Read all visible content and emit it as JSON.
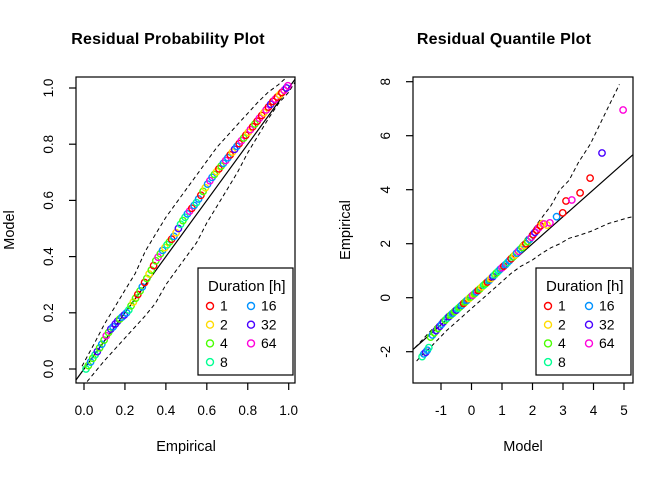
{
  "figure": {
    "background": "#ffffff",
    "foreground": "#000000"
  },
  "legend": {
    "title": "Duration [h]"
  },
  "durations": [
    {
      "label": "1",
      "color": "#FF0000"
    },
    {
      "label": "2",
      "color": "#FFDB00"
    },
    {
      "label": "4",
      "color": "#49FF00"
    },
    {
      "label": "8",
      "color": "#00FF92"
    },
    {
      "label": "16",
      "color": "#0092FF"
    },
    {
      "label": "32",
      "color": "#4900FF"
    },
    {
      "label": "64",
      "color": "#FF00DB"
    }
  ],
  "chart_data": [
    {
      "id": "residual-probability-plot",
      "type": "scatter",
      "title": "Residual Probability Plot",
      "xlabel": "Empirical",
      "ylabel": "Model",
      "xlim": [
        -0.04,
        1.03
      ],
      "ylim": [
        -0.05,
        1.04
      ],
      "grid": false,
      "legend_position": "bottom-right",
      "xticks": {
        "values": [
          0.0,
          0.2,
          0.4,
          0.6,
          0.8,
          1.0
        ],
        "labels": [
          "0.0",
          "0.2",
          "0.4",
          "0.6",
          "0.8",
          "1.0"
        ]
      },
      "yticks": {
        "values": [
          0.0,
          0.2,
          0.4,
          0.6,
          0.8,
          1.0
        ],
        "labels": [
          "0.0",
          "0.2",
          "0.4",
          "0.6",
          "0.8",
          "1.0"
        ]
      },
      "ref_line": [
        [
          -0.04,
          -0.04
        ],
        [
          1.031,
          1.031
        ]
      ],
      "bands": {
        "upper": [
          [
            -0.01,
            0.01
          ],
          [
            0.05,
            0.09
          ],
          [
            0.1,
            0.16
          ],
          [
            0.15,
            0.22
          ],
          [
            0.2,
            0.28
          ],
          [
            0.25,
            0.34
          ],
          [
            0.3,
            0.42
          ],
          [
            0.35,
            0.48
          ],
          [
            0.4,
            0.54
          ],
          [
            0.45,
            0.59
          ],
          [
            0.5,
            0.64
          ],
          [
            0.55,
            0.69
          ],
          [
            0.6,
            0.74
          ],
          [
            0.65,
            0.79
          ],
          [
            0.7,
            0.83
          ],
          [
            0.75,
            0.87
          ],
          [
            0.8,
            0.91
          ],
          [
            0.85,
            0.95
          ],
          [
            0.9,
            0.985
          ],
          [
            0.95,
            1.012
          ],
          [
            0.985,
            1.035
          ]
        ],
        "lower": [
          [
            0.015,
            -0.045
          ],
          [
            0.1,
            0.03
          ],
          [
            0.2,
            0.11
          ],
          [
            0.3,
            0.19
          ],
          [
            0.35,
            0.235
          ],
          [
            0.4,
            0.3
          ],
          [
            0.45,
            0.35
          ],
          [
            0.5,
            0.4
          ],
          [
            0.55,
            0.45
          ],
          [
            0.6,
            0.52
          ],
          [
            0.65,
            0.58
          ],
          [
            0.7,
            0.64
          ],
          [
            0.75,
            0.7
          ],
          [
            0.8,
            0.77
          ],
          [
            0.85,
            0.83
          ],
          [
            0.9,
            0.89
          ],
          [
            0.95,
            0.945
          ],
          [
            1.0,
            0.985
          ],
          [
            1.03,
            1.02
          ]
        ]
      },
      "points": [
        [
          0.01,
          0.0,
          3
        ],
        [
          0.021,
          0.012,
          2
        ],
        [
          0.032,
          0.025,
          4
        ],
        [
          0.043,
          0.038,
          2
        ],
        [
          0.054,
          0.05,
          3
        ],
        [
          0.065,
          0.062,
          5
        ],
        [
          0.076,
          0.075,
          2
        ],
        [
          0.087,
          0.088,
          4
        ],
        [
          0.098,
          0.103,
          2
        ],
        [
          0.109,
          0.118,
          6
        ],
        [
          0.12,
          0.13,
          2
        ],
        [
          0.131,
          0.142,
          5
        ],
        [
          0.142,
          0.15,
          4
        ],
        [
          0.153,
          0.16,
          5
        ],
        [
          0.164,
          0.17,
          5
        ],
        [
          0.175,
          0.178,
          2
        ],
        [
          0.186,
          0.185,
          4
        ],
        [
          0.197,
          0.192,
          5
        ],
        [
          0.208,
          0.2,
          4
        ],
        [
          0.219,
          0.21,
          3
        ],
        [
          0.23,
          0.225,
          2
        ],
        [
          0.241,
          0.238,
          1
        ],
        [
          0.252,
          0.252,
          2
        ],
        [
          0.263,
          0.265,
          0
        ],
        [
          0.274,
          0.278,
          2
        ],
        [
          0.285,
          0.292,
          4
        ],
        [
          0.296,
          0.308,
          0
        ],
        [
          0.307,
          0.322,
          2
        ],
        [
          0.318,
          0.338,
          1
        ],
        [
          0.329,
          0.352,
          2
        ],
        [
          0.34,
          0.368,
          0
        ],
        [
          0.351,
          0.385,
          2
        ],
        [
          0.362,
          0.398,
          6
        ],
        [
          0.373,
          0.41,
          2
        ],
        [
          0.384,
          0.422,
          4
        ],
        [
          0.395,
          0.432,
          1
        ],
        [
          0.406,
          0.442,
          3
        ],
        [
          0.417,
          0.452,
          2
        ],
        [
          0.428,
          0.462,
          0
        ],
        [
          0.439,
          0.472,
          4
        ],
        [
          0.45,
          0.485,
          1
        ],
        [
          0.461,
          0.5,
          5
        ],
        [
          0.472,
          0.515,
          3
        ],
        [
          0.483,
          0.528,
          2
        ],
        [
          0.494,
          0.54,
          3
        ],
        [
          0.505,
          0.552,
          4
        ],
        [
          0.516,
          0.562,
          6
        ],
        [
          0.527,
          0.572,
          0
        ],
        [
          0.538,
          0.582,
          4
        ],
        [
          0.549,
          0.592,
          3
        ],
        [
          0.56,
          0.605,
          4
        ],
        [
          0.571,
          0.618,
          0
        ],
        [
          0.582,
          0.632,
          2
        ],
        [
          0.593,
          0.645,
          1
        ],
        [
          0.604,
          0.658,
          4
        ],
        [
          0.615,
          0.67,
          6
        ],
        [
          0.626,
          0.682,
          4
        ],
        [
          0.637,
          0.692,
          2
        ],
        [
          0.648,
          0.702,
          1
        ],
        [
          0.659,
          0.712,
          0
        ],
        [
          0.67,
          0.722,
          2
        ],
        [
          0.681,
          0.732,
          4
        ],
        [
          0.692,
          0.742,
          6
        ],
        [
          0.703,
          0.752,
          4
        ],
        [
          0.714,
          0.762,
          0
        ],
        [
          0.725,
          0.772,
          1
        ],
        [
          0.736,
          0.782,
          5
        ],
        [
          0.747,
          0.792,
          4
        ],
        [
          0.758,
          0.802,
          0
        ],
        [
          0.769,
          0.812,
          6
        ],
        [
          0.78,
          0.822,
          2
        ],
        [
          0.791,
          0.832,
          0
        ],
        [
          0.802,
          0.842,
          1
        ],
        [
          0.813,
          0.852,
          6
        ],
        [
          0.824,
          0.862,
          0
        ],
        [
          0.835,
          0.872,
          2
        ],
        [
          0.846,
          0.882,
          0
        ],
        [
          0.857,
          0.892,
          6
        ],
        [
          0.868,
          0.902,
          0
        ],
        [
          0.879,
          0.912,
          1
        ],
        [
          0.89,
          0.922,
          6
        ],
        [
          0.901,
          0.932,
          0
        ],
        [
          0.912,
          0.942,
          5
        ],
        [
          0.923,
          0.952,
          0
        ],
        [
          0.934,
          0.96,
          6
        ],
        [
          0.945,
          0.968,
          0
        ],
        [
          0.956,
          0.976,
          1
        ],
        [
          0.967,
          0.984,
          0
        ],
        [
          0.978,
          0.992,
          6
        ],
        [
          0.989,
          1.0,
          5
        ],
        [
          0.996,
          1.008,
          6
        ]
      ]
    },
    {
      "id": "residual-quantile-plot",
      "type": "scatter",
      "title": "Residual Quantile Plot",
      "xlabel": "Model",
      "ylabel": "Empirical",
      "xlim": [
        -1.92,
        5.3
      ],
      "ylim": [
        -3.1,
        8.2
      ],
      "grid": false,
      "legend_position": "bottom-right",
      "xticks": {
        "values": [
          -1,
          0,
          1,
          2,
          3,
          4,
          5
        ],
        "labels": [
          "-1",
          "0",
          "1",
          "2",
          "3",
          "4",
          "5"
        ]
      },
      "yticks": {
        "values": [
          -2,
          0,
          2,
          4,
          6,
          8
        ],
        "labels": [
          "-2",
          "0",
          "2",
          "4",
          "6",
          "8"
        ]
      },
      "ref_line": [
        [
          -1.92,
          -1.92
        ],
        [
          5.3,
          5.3
        ]
      ],
      "bands": {
        "upper": [
          [
            -1.85,
            -1.85
          ],
          [
            -1.4,
            -1.3
          ],
          [
            -1.0,
            -0.85
          ],
          [
            -0.6,
            -0.45
          ],
          [
            -0.2,
            -0.05
          ],
          [
            0.2,
            0.38
          ],
          [
            0.6,
            0.8
          ],
          [
            1.0,
            1.25
          ],
          [
            1.4,
            1.72
          ],
          [
            1.7,
            2.1
          ],
          [
            2.0,
            2.5
          ],
          [
            2.3,
            2.95
          ],
          [
            2.6,
            3.4
          ],
          [
            2.9,
            4.0
          ],
          [
            3.2,
            4.35
          ],
          [
            3.5,
            5.0
          ],
          [
            3.9,
            5.7
          ],
          [
            4.2,
            6.4
          ],
          [
            4.5,
            7.1
          ],
          [
            4.85,
            7.9
          ]
        ],
        "lower": [
          [
            -1.8,
            -2.35
          ],
          [
            -1.65,
            -2.15
          ],
          [
            -1.4,
            -1.9
          ],
          [
            -1.1,
            -1.55
          ],
          [
            -0.8,
            -1.2
          ],
          [
            -0.5,
            -0.9
          ],
          [
            -0.2,
            -0.6
          ],
          [
            0.1,
            -0.3
          ],
          [
            0.4,
            0.0
          ],
          [
            0.7,
            0.3
          ],
          [
            1.0,
            0.6
          ],
          [
            1.3,
            0.9
          ],
          [
            1.6,
            1.15
          ],
          [
            2.0,
            1.4
          ],
          [
            2.25,
            1.6
          ],
          [
            2.6,
            1.85
          ],
          [
            2.9,
            2.0
          ],
          [
            3.2,
            2.2
          ],
          [
            3.5,
            2.3
          ],
          [
            3.9,
            2.45
          ],
          [
            4.2,
            2.6
          ],
          [
            4.5,
            2.75
          ],
          [
            4.8,
            2.85
          ],
          [
            5.1,
            2.95
          ],
          [
            5.28,
            3.0
          ]
        ]
      },
      "points": [
        [
          -1.62,
          -2.18,
          3
        ],
        [
          -1.56,
          -2.08,
          4
        ],
        [
          -1.5,
          -2.02,
          5
        ],
        [
          -1.45,
          -1.95,
          4
        ],
        [
          -1.4,
          -1.85,
          3
        ],
        [
          -1.34,
          -1.46,
          2
        ],
        [
          -1.28,
          -1.38,
          4
        ],
        [
          -1.22,
          -1.3,
          2
        ],
        [
          -1.16,
          -1.22,
          5
        ],
        [
          -1.1,
          -1.14,
          2
        ],
        [
          -1.04,
          -1.06,
          5
        ],
        [
          -0.98,
          -0.98,
          4
        ],
        [
          -0.92,
          -0.9,
          5
        ],
        [
          -0.86,
          -0.83,
          2
        ],
        [
          -0.8,
          -0.76,
          3
        ],
        [
          -0.74,
          -0.7,
          5
        ],
        [
          -0.68,
          -0.64,
          2
        ],
        [
          -0.62,
          -0.58,
          4
        ],
        [
          -0.56,
          -0.52,
          2
        ],
        [
          -0.5,
          -0.46,
          5
        ],
        [
          -0.44,
          -0.4,
          3
        ],
        [
          -0.38,
          -0.34,
          2
        ],
        [
          -0.32,
          -0.28,
          4
        ],
        [
          -0.26,
          -0.21,
          0
        ],
        [
          -0.2,
          -0.15,
          2
        ],
        [
          -0.14,
          -0.09,
          4
        ],
        [
          -0.08,
          -0.03,
          1
        ],
        [
          -0.02,
          0.03,
          2
        ],
        [
          0.04,
          0.09,
          6
        ],
        [
          0.1,
          0.15,
          2
        ],
        [
          0.16,
          0.21,
          4
        ],
        [
          0.22,
          0.27,
          0
        ],
        [
          0.28,
          0.33,
          2
        ],
        [
          0.34,
          0.4,
          1
        ],
        [
          0.4,
          0.46,
          3
        ],
        [
          0.46,
          0.52,
          2
        ],
        [
          0.52,
          0.58,
          0
        ],
        [
          0.58,
          0.64,
          4
        ],
        [
          0.64,
          0.71,
          1
        ],
        [
          0.7,
          0.78,
          5
        ],
        [
          0.76,
          0.85,
          3
        ],
        [
          0.82,
          0.92,
          2
        ],
        [
          0.88,
          0.98,
          3
        ],
        [
          0.94,
          1.05,
          4
        ],
        [
          1.0,
          1.11,
          6
        ],
        [
          1.06,
          1.17,
          0
        ],
        [
          1.12,
          1.23,
          4
        ],
        [
          1.18,
          1.3,
          3
        ],
        [
          1.24,
          1.37,
          4
        ],
        [
          1.3,
          1.44,
          0
        ],
        [
          1.36,
          1.51,
          2
        ],
        [
          1.42,
          1.58,
          1
        ],
        [
          1.48,
          1.65,
          4
        ],
        [
          1.54,
          1.72,
          6
        ],
        [
          1.6,
          1.79,
          4
        ],
        [
          1.66,
          1.86,
          2
        ],
        [
          1.72,
          1.93,
          1
        ],
        [
          1.78,
          2.0,
          0
        ],
        [
          1.84,
          2.08,
          2
        ],
        [
          1.9,
          2.16,
          4
        ],
        [
          1.96,
          2.24,
          6
        ],
        [
          2.02,
          2.33,
          0
        ],
        [
          2.08,
          2.42,
          5
        ],
        [
          2.14,
          2.5,
          0
        ],
        [
          2.2,
          2.58,
          6
        ],
        [
          2.26,
          2.66,
          0
        ],
        [
          2.32,
          2.74,
          1
        ],
        [
          2.38,
          2.73,
          6
        ],
        [
          2.48,
          2.69,
          1
        ],
        [
          2.57,
          2.77,
          6
        ],
        [
          2.79,
          3.0,
          4
        ],
        [
          2.99,
          3.14,
          0
        ],
        [
          3.1,
          3.58,
          0
        ],
        [
          3.29,
          3.62,
          6
        ],
        [
          3.56,
          3.88,
          0
        ],
        [
          3.89,
          4.43,
          0
        ],
        [
          4.28,
          5.36,
          5
        ],
        [
          4.97,
          6.95,
          6
        ]
      ]
    }
  ]
}
